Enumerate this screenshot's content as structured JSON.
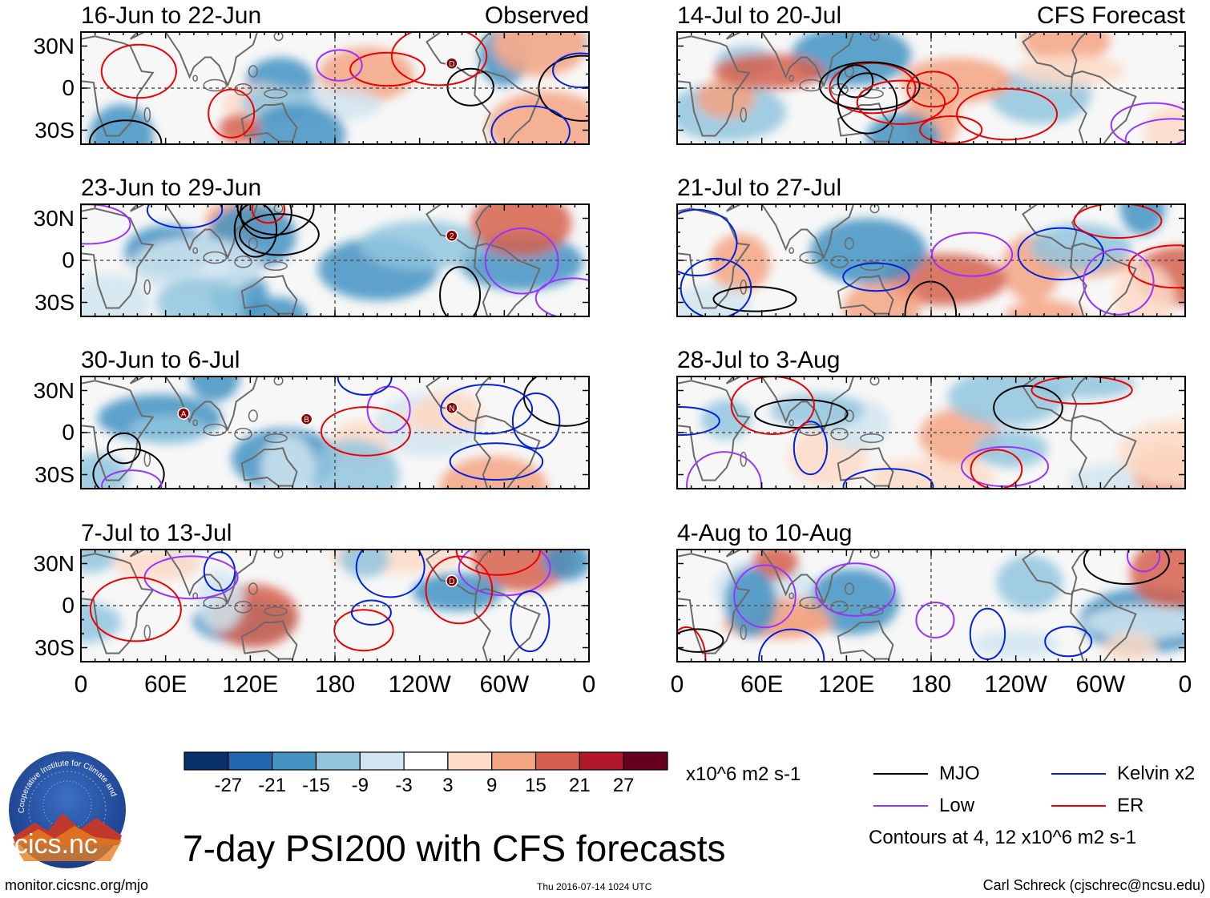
{
  "figure_title": "7-day PSI200 with CFS forecasts",
  "footer": {
    "url": "monitor.cicsnc.org/mjo",
    "timestamp": "Thu 2016-07-14 1024 UTC",
    "author": "Carl Schreck (cjschrec@ncsu.edu)"
  },
  "logo": {
    "text": "cics.nc",
    "ring_text": "Cooperative Institute for Climate and Satellites"
  },
  "chart_data": {
    "type": "heatmap",
    "variable": "PSI200",
    "column_labels": {
      "observed": "Observed",
      "forecast": "CFS Forecast"
    },
    "x_ticks": [
      "0",
      "60E",
      "120E",
      "180",
      "120W",
      "60W",
      "0"
    ],
    "y_ticks": [
      "30N",
      "0",
      "30S"
    ],
    "xlim": [
      0,
      360
    ],
    "ylim": [
      -40,
      40
    ],
    "panels": [
      {
        "id": "obs-1",
        "column": "observed",
        "title": "16-Jun to 22-Jun",
        "markers": [
          "D"
        ]
      },
      {
        "id": "obs-2",
        "column": "observed",
        "title": "23-Jun to 29-Jun",
        "markers": [
          "2"
        ]
      },
      {
        "id": "obs-3",
        "column": "observed",
        "title": "30-Jun to 6-Jul",
        "markers": [
          "N",
          "A",
          "B"
        ]
      },
      {
        "id": "obs-4",
        "column": "observed",
        "title": "7-Jul to 13-Jul",
        "markers": [
          "D"
        ]
      },
      {
        "id": "fc-1",
        "column": "forecast",
        "title": "14-Jul to 20-Jul",
        "markers": []
      },
      {
        "id": "fc-2",
        "column": "forecast",
        "title": "21-Jul to 27-Jul",
        "markers": []
      },
      {
        "id": "fc-3",
        "column": "forecast",
        "title": "28-Jul to 3-Aug",
        "markers": []
      },
      {
        "id": "fc-4",
        "column": "forecast",
        "title": "4-Aug to 10-Aug",
        "markers": []
      }
    ],
    "colorbar": {
      "unit_label": "x10^6 m2 s-1",
      "levels": [
        "-27",
        "-21",
        "-15",
        "-9",
        "-3",
        "3",
        "9",
        "15",
        "21",
        "27"
      ],
      "colors": [
        "#08306b",
        "#2166ac",
        "#4393c3",
        "#92c5de",
        "#d1e5f0",
        "#ffffff",
        "#fddbc7",
        "#f4a582",
        "#d6604d",
        "#b2182b",
        "#67001f"
      ]
    },
    "contours": {
      "note": "Contours at 4, 12 x10^6 m2 s-1",
      "levels": [
        4,
        12
      ],
      "legend": [
        {
          "label": "MJO",
          "color": "#000000"
        },
        {
          "label": "Kelvin x2",
          "color": "#0022dd"
        },
        {
          "label": "Low",
          "color": "#9933ff"
        },
        {
          "label": "ER",
          "color": "#ee0000"
        }
      ]
    }
  }
}
